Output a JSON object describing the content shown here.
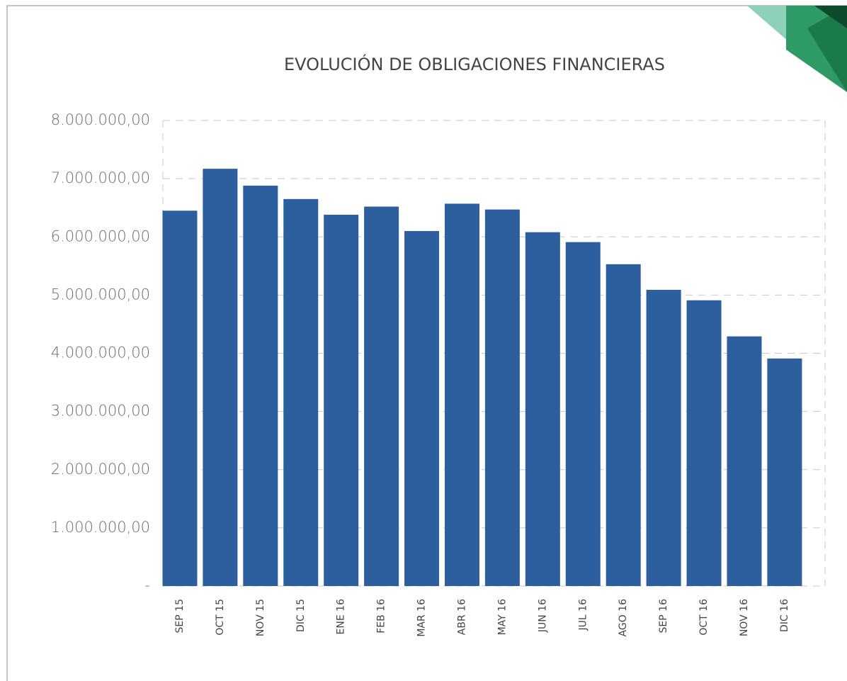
{
  "chart_data": {
    "type": "bar",
    "title": "EVOLUCIÓN DE OBLIGACIONES FINANCIERAS",
    "categories": [
      "SEP 15",
      "OCT 15",
      "NOV 15",
      "DIC 15",
      "ENE 16",
      "FEB 16",
      "MAR 16",
      "ABR 16",
      "MAY 16",
      "JUN 16",
      "JUL 16",
      "AGO 16",
      "SEP 16",
      "OCT 16",
      "NOV 16",
      "DIC 16"
    ],
    "values": [
      6450000,
      7170000,
      6880000,
      6650000,
      6380000,
      6520000,
      6100000,
      6570000,
      6470000,
      6080000,
      5910000,
      5530000,
      5090000,
      4910000,
      4290000,
      3910000
    ],
    "color": "#2d5f9f",
    "ylim": [
      0,
      8000000
    ],
    "yticks": [
      {
        "value": 0,
        "label": "-"
      },
      {
        "value": 1000000,
        "label": "1.000.000,00"
      },
      {
        "value": 2000000,
        "label": "2.000.000,00"
      },
      {
        "value": 3000000,
        "label": "3.000.000,00"
      },
      {
        "value": 4000000,
        "label": "4.000.000,00"
      },
      {
        "value": 5000000,
        "label": "5.000.000,00"
      },
      {
        "value": 6000000,
        "label": "6.000.000,00"
      },
      {
        "value": 7000000,
        "label": "7.000.000,00"
      },
      {
        "value": 8000000,
        "label": "8.000.000,00"
      }
    ],
    "grid": true
  }
}
